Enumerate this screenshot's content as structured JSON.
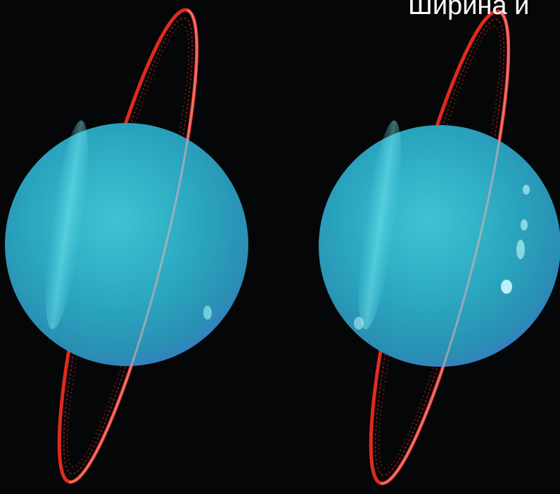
{
  "caption": "Ширина и"
}
